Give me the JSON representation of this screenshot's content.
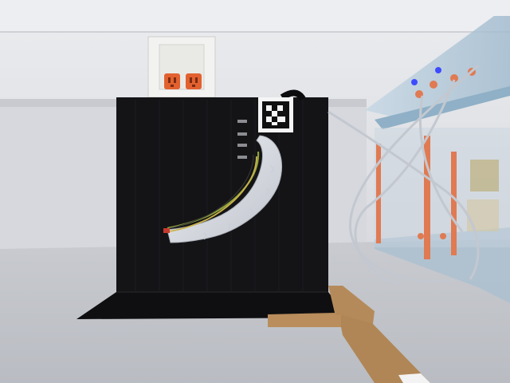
{
  "scene": {
    "objects": [
      "soft-continuum-robot-arm",
      "aruco-fiducial-marker",
      "black-backdrop-board",
      "wall-power-outlet",
      "pneumatic-control-rack",
      "cardboard-guide-strip"
    ]
  },
  "colors": {
    "wall": "#dfe1e5",
    "ceiling": "#e9ebee",
    "floor": "#c2c4c9",
    "backdrop": "#141416",
    "outlet_cover": "#f0f0ee",
    "outlet_receptacle": "#e2612f",
    "robot_body": "#d8dbe3",
    "wire_green": "#8ea23a",
    "wire_yellow": "#c9b24a",
    "cardboard": "#b58a5a",
    "rack_acrylic": "#a9c3d6",
    "rack_rod": "#e07a52",
    "tubing": "#c9ced6",
    "led_blue": "#3d4cff"
  }
}
